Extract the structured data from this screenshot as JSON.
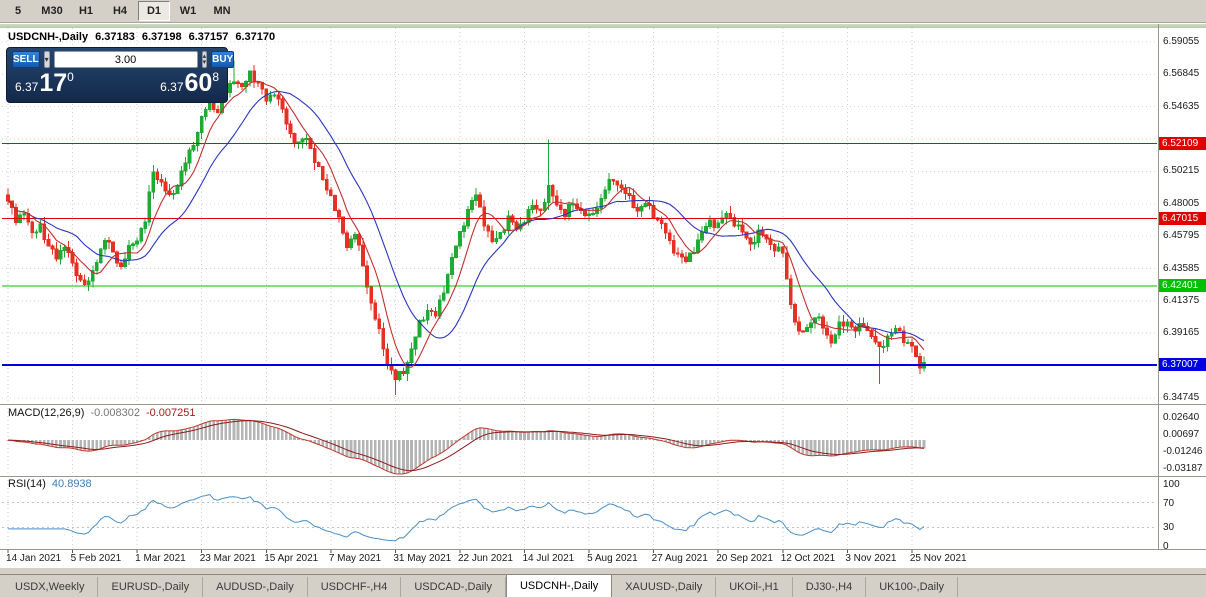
{
  "toolbar": {
    "timeframes": [
      {
        "label": "5",
        "active": false
      },
      {
        "label": "M30",
        "active": false
      },
      {
        "label": "H1",
        "active": false
      },
      {
        "label": "H4",
        "active": false
      },
      {
        "label": "D1",
        "active": true
      },
      {
        "label": "W1",
        "active": false
      },
      {
        "label": "MN",
        "active": false
      }
    ]
  },
  "quote_line": {
    "symbol_period": "USDCNH-,Daily",
    "open": "6.37183",
    "high": "6.37198",
    "low": "6.37157",
    "close": "6.37170"
  },
  "trade_panel": {
    "sell_label": "SELL",
    "buy_label": "BUY",
    "volume": "3.00",
    "sell_price": {
      "prefix": "6.37",
      "big": "17",
      "sup": "0"
    },
    "buy_price": {
      "prefix": "6.37",
      "big": "60",
      "sup": "8"
    }
  },
  "price_axis": {
    "ticks": [
      {
        "text": "6.59055",
        "value": 6.59055
      },
      {
        "text": "6.56845",
        "value": 6.56845
      },
      {
        "text": "6.54635",
        "value": 6.54635
      },
      {
        "text": "6.50215",
        "value": 6.50215
      },
      {
        "text": "6.48005",
        "value": 6.48005
      },
      {
        "text": "6.45795",
        "value": 6.45795
      },
      {
        "text": "6.43585",
        "value": 6.43585
      },
      {
        "text": "6.41375",
        "value": 6.41375
      },
      {
        "text": "6.39165",
        "value": 6.39165
      },
      {
        "text": "6.34745",
        "value": 6.34745
      }
    ],
    "grid_top": 6.59055,
    "grid_step": 0.0221,
    "grid_count": 12,
    "badges": [
      {
        "text": "6.52109",
        "value": 6.52109,
        "color": "#e00000"
      },
      {
        "text": "6.47015",
        "value": 6.47015,
        "color": "#e00000"
      },
      {
        "text": "6.42401",
        "value": 6.42401,
        "color": "#00c000"
      },
      {
        "text": "6.37007",
        "value": 6.37007,
        "color": "#0000e0"
      }
    ]
  },
  "chart_data": {
    "type": "candlestick",
    "symbol": "USDCNH-",
    "period": "Daily",
    "ylim": [
      6.344,
      6.6001
    ],
    "candle_count": 228,
    "close_path": [
      [
        0,
        6.482
      ],
      [
        2,
        6.468
      ],
      [
        4,
        6.476
      ],
      [
        6,
        6.458
      ],
      [
        8,
        6.466
      ],
      [
        10,
        6.45
      ],
      [
        12,
        6.444
      ],
      [
        14,
        6.452
      ],
      [
        16,
        6.438
      ],
      [
        18,
        6.428
      ],
      [
        20,
        6.425
      ],
      [
        22,
        6.442
      ],
      [
        24,
        6.456
      ],
      [
        26,
        6.447
      ],
      [
        28,
        6.437
      ],
      [
        30,
        6.449
      ],
      [
        32,
        6.457
      ],
      [
        34,
        6.468
      ],
      [
        36,
        6.503
      ],
      [
        38,
        6.494
      ],
      [
        40,
        6.484
      ],
      [
        42,
        6.494
      ],
      [
        44,
        6.508
      ],
      [
        46,
        6.522
      ],
      [
        48,
        6.538
      ],
      [
        50,
        6.551
      ],
      [
        52,
        6.543
      ],
      [
        54,
        6.556
      ],
      [
        56,
        6.566
      ],
      [
        58,
        6.558
      ],
      [
        60,
        6.57
      ],
      [
        62,
        6.562
      ],
      [
        64,
        6.551
      ],
      [
        66,
        6.557
      ],
      [
        68,
        6.543
      ],
      [
        70,
        6.528
      ],
      [
        72,
        6.52
      ],
      [
        74,
        6.526
      ],
      [
        76,
        6.51
      ],
      [
        78,
        6.496
      ],
      [
        80,
        6.486
      ],
      [
        82,
        6.468
      ],
      [
        84,
        6.452
      ],
      [
        86,
        6.46
      ],
      [
        88,
        6.438
      ],
      [
        90,
        6.412
      ],
      [
        92,
        6.392
      ],
      [
        94,
        6.372
      ],
      [
        96,
        6.36
      ],
      [
        98,
        6.366
      ],
      [
        100,
        6.38
      ],
      [
        102,
        6.398
      ],
      [
        104,
        6.408
      ],
      [
        106,
        6.403
      ],
      [
        108,
        6.422
      ],
      [
        110,
        6.442
      ],
      [
        112,
        6.46
      ],
      [
        114,
        6.476
      ],
      [
        116,
        6.486
      ],
      [
        118,
        6.468
      ],
      [
        120,
        6.453
      ],
      [
        122,
        6.46
      ],
      [
        124,
        6.47
      ],
      [
        126,
        6.463
      ],
      [
        128,
        6.47
      ],
      [
        130,
        6.478
      ],
      [
        132,
        6.476
      ],
      [
        134,
        6.49
      ],
      [
        136,
        6.48
      ],
      [
        138,
        6.473
      ],
      [
        140,
        6.48
      ],
      [
        142,
        6.476
      ],
      [
        144,
        6.47
      ],
      [
        146,
        6.478
      ],
      [
        148,
        6.49
      ],
      [
        150,
        6.497
      ],
      [
        152,
        6.491
      ],
      [
        154,
        6.483
      ],
      [
        156,
        6.476
      ],
      [
        158,
        6.48
      ],
      [
        160,
        6.473
      ],
      [
        162,
        6.466
      ],
      [
        164,
        6.453
      ],
      [
        166,
        6.446
      ],
      [
        168,
        6.44
      ],
      [
        170,
        6.45
      ],
      [
        172,
        6.46
      ],
      [
        174,
        6.468
      ],
      [
        176,
        6.466
      ],
      [
        178,
        6.473
      ],
      [
        180,
        6.468
      ],
      [
        182,
        6.46
      ],
      [
        184,
        6.453
      ],
      [
        186,
        6.46
      ],
      [
        188,
        6.456
      ],
      [
        190,
        6.45
      ],
      [
        192,
        6.446
      ],
      [
        194,
        6.412
      ],
      [
        196,
        6.39
      ],
      [
        198,
        6.396
      ],
      [
        200,
        6.403
      ],
      [
        202,
        6.396
      ],
      [
        204,
        6.386
      ],
      [
        206,
        6.396
      ],
      [
        208,
        6.4
      ],
      [
        210,
        6.393
      ],
      [
        212,
        6.398
      ],
      [
        214,
        6.39
      ],
      [
        216,
        6.38
      ],
      [
        218,
        6.39
      ],
      [
        220,
        6.394
      ],
      [
        222,
        6.388
      ],
      [
        224,
        6.383
      ],
      [
        226,
        6.366
      ],
      [
        227,
        6.3717
      ]
    ],
    "close_overrides": [
      [
        226,
        6.368
      ],
      [
        227,
        6.3717
      ]
    ],
    "noise_amp": 0.0032,
    "wick_amp": 0.005,
    "spikes": [
      {
        "i": 56,
        "high": 6.578
      },
      {
        "i": 96,
        "low": 6.3495
      },
      {
        "i": 134,
        "high": 6.524
      },
      {
        "i": 216,
        "low": 6.357
      }
    ],
    "up_color": "#1faa34",
    "down_color": "#e63022",
    "ma_fast": {
      "period": 7,
      "color": "#c03030"
    },
    "ma_slow": {
      "period": 18,
      "color": "#2a35c0"
    },
    "hlines": [
      {
        "value": 6.52109,
        "color": "#e00000",
        "width": 1
      },
      {
        "value": 6.47015,
        "color": "#e00000",
        "width": 1
      },
      {
        "value": 6.42401,
        "color": "#00c000",
        "width": 1
      },
      {
        "value": 6.37007,
        "color": "#0000e0",
        "width": 2
      }
    ],
    "macd": {
      "label": "MACD(12,26,9)",
      "value_main": "-0.008302",
      "value_signal": "-0.007251",
      "fast": 12,
      "slow": 26,
      "signal": 9,
      "ylim": [
        -0.0387,
        0.0367
      ],
      "axis": [
        {
          "text": "0.02640",
          "value": 0.0264
        },
        {
          "text": "0.00697",
          "value": 0.00697
        },
        {
          "text": "-0.01246",
          "value": -0.01246
        },
        {
          "text": "-0.03187",
          "value": -0.03187
        }
      ],
      "histogram_color": "#b4b4b4",
      "macd_color": "#c0392b",
      "signal_color": "#8e1b1b"
    },
    "rsi": {
      "label": "RSI(14)",
      "value": "40.8938",
      "period": 14,
      "ylim": [
        0,
        100
      ],
      "axis": [
        {
          "text": "100",
          "value": 100
        },
        {
          "text": "70",
          "value": 70
        },
        {
          "text": "30",
          "value": 30
        },
        {
          "text": "0",
          "value": 0
        }
      ],
      "levels": [
        70,
        30
      ],
      "color": "#4a8fc7"
    },
    "x_axis": {
      "labels": [
        "14 Jan 2021",
        "5 Feb 2021",
        "1 Mar 2021",
        "23 Mar 2021",
        "15 Apr 2021",
        "7 May 2021",
        "31 May 2021",
        "22 Jun 2021",
        "14 Jul 2021",
        "5 Aug 2021",
        "27 Aug 2021",
        "20 Sep 2021",
        "12 Oct 2021",
        "3 Nov 2021",
        "25 Nov 2021"
      ],
      "candles_per_tick": 16
    }
  },
  "tabs": [
    {
      "label": "USDX,Weekly",
      "active": false
    },
    {
      "label": "EURUSD-,Daily",
      "active": false
    },
    {
      "label": "AUDUSD-,Daily",
      "active": false
    },
    {
      "label": "USDCHF-,H4",
      "active": false
    },
    {
      "label": "USDCAD-,Daily",
      "active": false
    },
    {
      "label": "USDCNH-,Daily",
      "active": true
    },
    {
      "label": "XAUUSD-,Daily",
      "active": false
    },
    {
      "label": "UKOil-,H1",
      "active": false
    },
    {
      "label": "DJ30-,H4",
      "active": false
    },
    {
      "label": "UK100-,Daily",
      "active": false
    }
  ]
}
